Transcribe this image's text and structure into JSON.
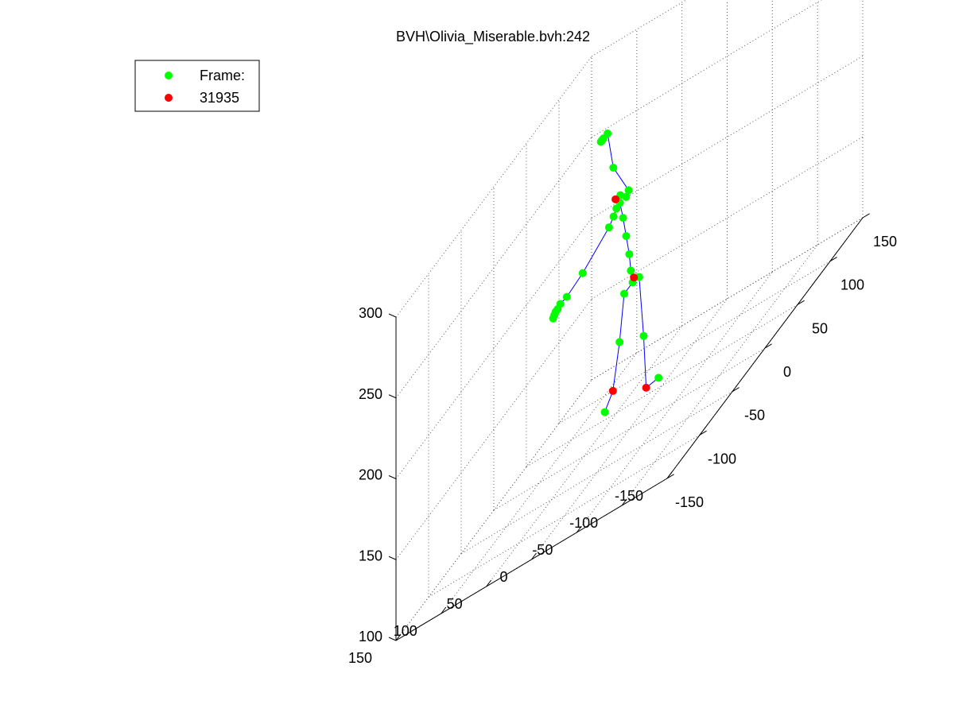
{
  "chart_data": {
    "type": "scatter",
    "title": "BVH\\Olivia_Miserable.bvh:242",
    "xlim": [
      -150,
      150
    ],
    "ylim": [
      -150,
      150
    ],
    "zlim": [
      100,
      300
    ],
    "x_ticks": [
      -150,
      -100,
      -50,
      0,
      50,
      100,
      150
    ],
    "y_ticks": [
      150,
      100,
      50,
      0,
      -50,
      -100,
      -150
    ],
    "z_ticks": [
      100,
      150,
      200,
      250,
      300
    ],
    "grid": true,
    "legend_position": "top-left",
    "colors": {
      "green": "#00ff00",
      "red": "#ff0000",
      "bone": "#0000ff"
    },
    "series": [
      {
        "name": "Frame:",
        "color": "#00ff00",
        "joints": [
          {
            "id": "hip",
            "x": 5,
            "y": 0,
            "z": 188
          },
          {
            "id": "spine1",
            "x": 5,
            "y": 2,
            "z": 196
          },
          {
            "id": "spine2",
            "x": 4,
            "y": 3,
            "z": 207
          },
          {
            "id": "spine3",
            "x": 2,
            "y": 5,
            "z": 220
          },
          {
            "id": "chest",
            "x": 0,
            "y": 7,
            "z": 233
          },
          {
            "id": "neck",
            "x": -2,
            "y": 9,
            "z": 244
          },
          {
            "id": "neck2",
            "x": 0,
            "y": 10,
            "z": 248
          },
          {
            "id": "head",
            "x": -8,
            "y": 12,
            "z": 270
          },
          {
            "id": "headtop",
            "x": -14,
            "y": 14,
            "z": 295
          },
          {
            "id": "headA",
            "x": -19,
            "y": 15,
            "z": 295
          },
          {
            "id": "headB",
            "x": -21,
            "y": 15,
            "z": 295
          },
          {
            "id": "headC",
            "x": -22,
            "y": 15,
            "z": 295
          },
          {
            "id": "headD",
            "x": -23,
            "y": 15,
            "z": 295
          },
          {
            "id": "lcollar",
            "x": -6,
            "y": 10,
            "z": 243
          },
          {
            "id": "rcollar",
            "x": 6,
            "y": 8,
            "z": 243
          },
          {
            "id": "lshoulder",
            "x": -9,
            "y": 11,
            "z": 240
          },
          {
            "id": "rshoulder",
            "x": 10,
            "y": 8,
            "z": 245
          },
          {
            "id": "lupperarm",
            "x": -16,
            "y": 11,
            "z": 237
          },
          {
            "id": "lelbow",
            "x": -55,
            "y": 12,
            "z": 230
          },
          {
            "id": "lforearm",
            "x": -78,
            "y": 13,
            "z": 228
          },
          {
            "id": "lwrist",
            "x": -88,
            "y": 13,
            "z": 229
          },
          {
            "id": "lhandA",
            "x": -92,
            "y": 13,
            "z": 228
          },
          {
            "id": "lhandB",
            "x": -95,
            "y": 13,
            "z": 228
          },
          {
            "id": "lhandC",
            "x": -97,
            "y": 13,
            "z": 227
          },
          {
            "id": "lhandD",
            "x": -99,
            "y": 13,
            "z": 226
          },
          {
            "id": "lhip",
            "x": -8,
            "y": 0,
            "z": 188
          },
          {
            "id": "rhip",
            "x": 15,
            "y": 0,
            "z": 186
          },
          {
            "id": "lknee",
            "x": -22,
            "y": -5,
            "z": 164
          },
          {
            "id": "rknee",
            "x": 8,
            "y": -10,
            "z": 150
          },
          {
            "id": "ltoe",
            "x": -35,
            "y": 2,
            "z": 130
          },
          {
            "id": "rtoe",
            "x": 10,
            "y": -25,
            "z": 118
          }
        ]
      },
      {
        "name": "31935",
        "color": "#ff0000",
        "joints": [
          {
            "id": "neck-end",
            "x": -6,
            "y": 11,
            "z": 249
          },
          {
            "id": "pelvis",
            "x": 7,
            "y": 0,
            "z": 190
          },
          {
            "id": "lankle",
            "x": -28,
            "y": -2,
            "z": 138
          },
          {
            "id": "rankle",
            "x": -2,
            "y": -20,
            "z": 120
          }
        ]
      }
    ],
    "bones": [
      [
        "hip",
        "spine1"
      ],
      [
        "spine1",
        "spine2"
      ],
      [
        "spine2",
        "spine3"
      ],
      [
        "spine3",
        "chest"
      ],
      [
        "chest",
        "neck"
      ],
      [
        "neck",
        "neck2"
      ],
      [
        "neck2",
        "rcollar"
      ],
      [
        "rcollar",
        "rshoulder"
      ],
      [
        "rshoulder",
        "head"
      ],
      [
        "head",
        "headtop"
      ],
      [
        "headtop",
        "headA"
      ],
      [
        "headA",
        "headB"
      ],
      [
        "headB",
        "headC"
      ],
      [
        "headC",
        "headD"
      ],
      [
        "neck",
        "lcollar"
      ],
      [
        "lcollar",
        "lshoulder"
      ],
      [
        "lshoulder",
        "lupperarm"
      ],
      [
        "lupperarm",
        "lelbow"
      ],
      [
        "lelbow",
        "lforearm"
      ],
      [
        "lforearm",
        "lwrist"
      ],
      [
        "lwrist",
        "lhandA"
      ],
      [
        "lhandA",
        "lhandB"
      ],
      [
        "lhandB",
        "lhandC"
      ],
      [
        "lhandC",
        "lhandD"
      ],
      [
        "hip",
        "lhip"
      ],
      [
        "lhip",
        "lknee"
      ],
      [
        "lknee",
        "lankle"
      ],
      [
        "lankle",
        "ltoe"
      ],
      [
        "hip",
        "rhip"
      ],
      [
        "rhip",
        "rknee"
      ],
      [
        "rknee",
        "rankle"
      ],
      [
        "rankle",
        "rtoe"
      ]
    ]
  }
}
